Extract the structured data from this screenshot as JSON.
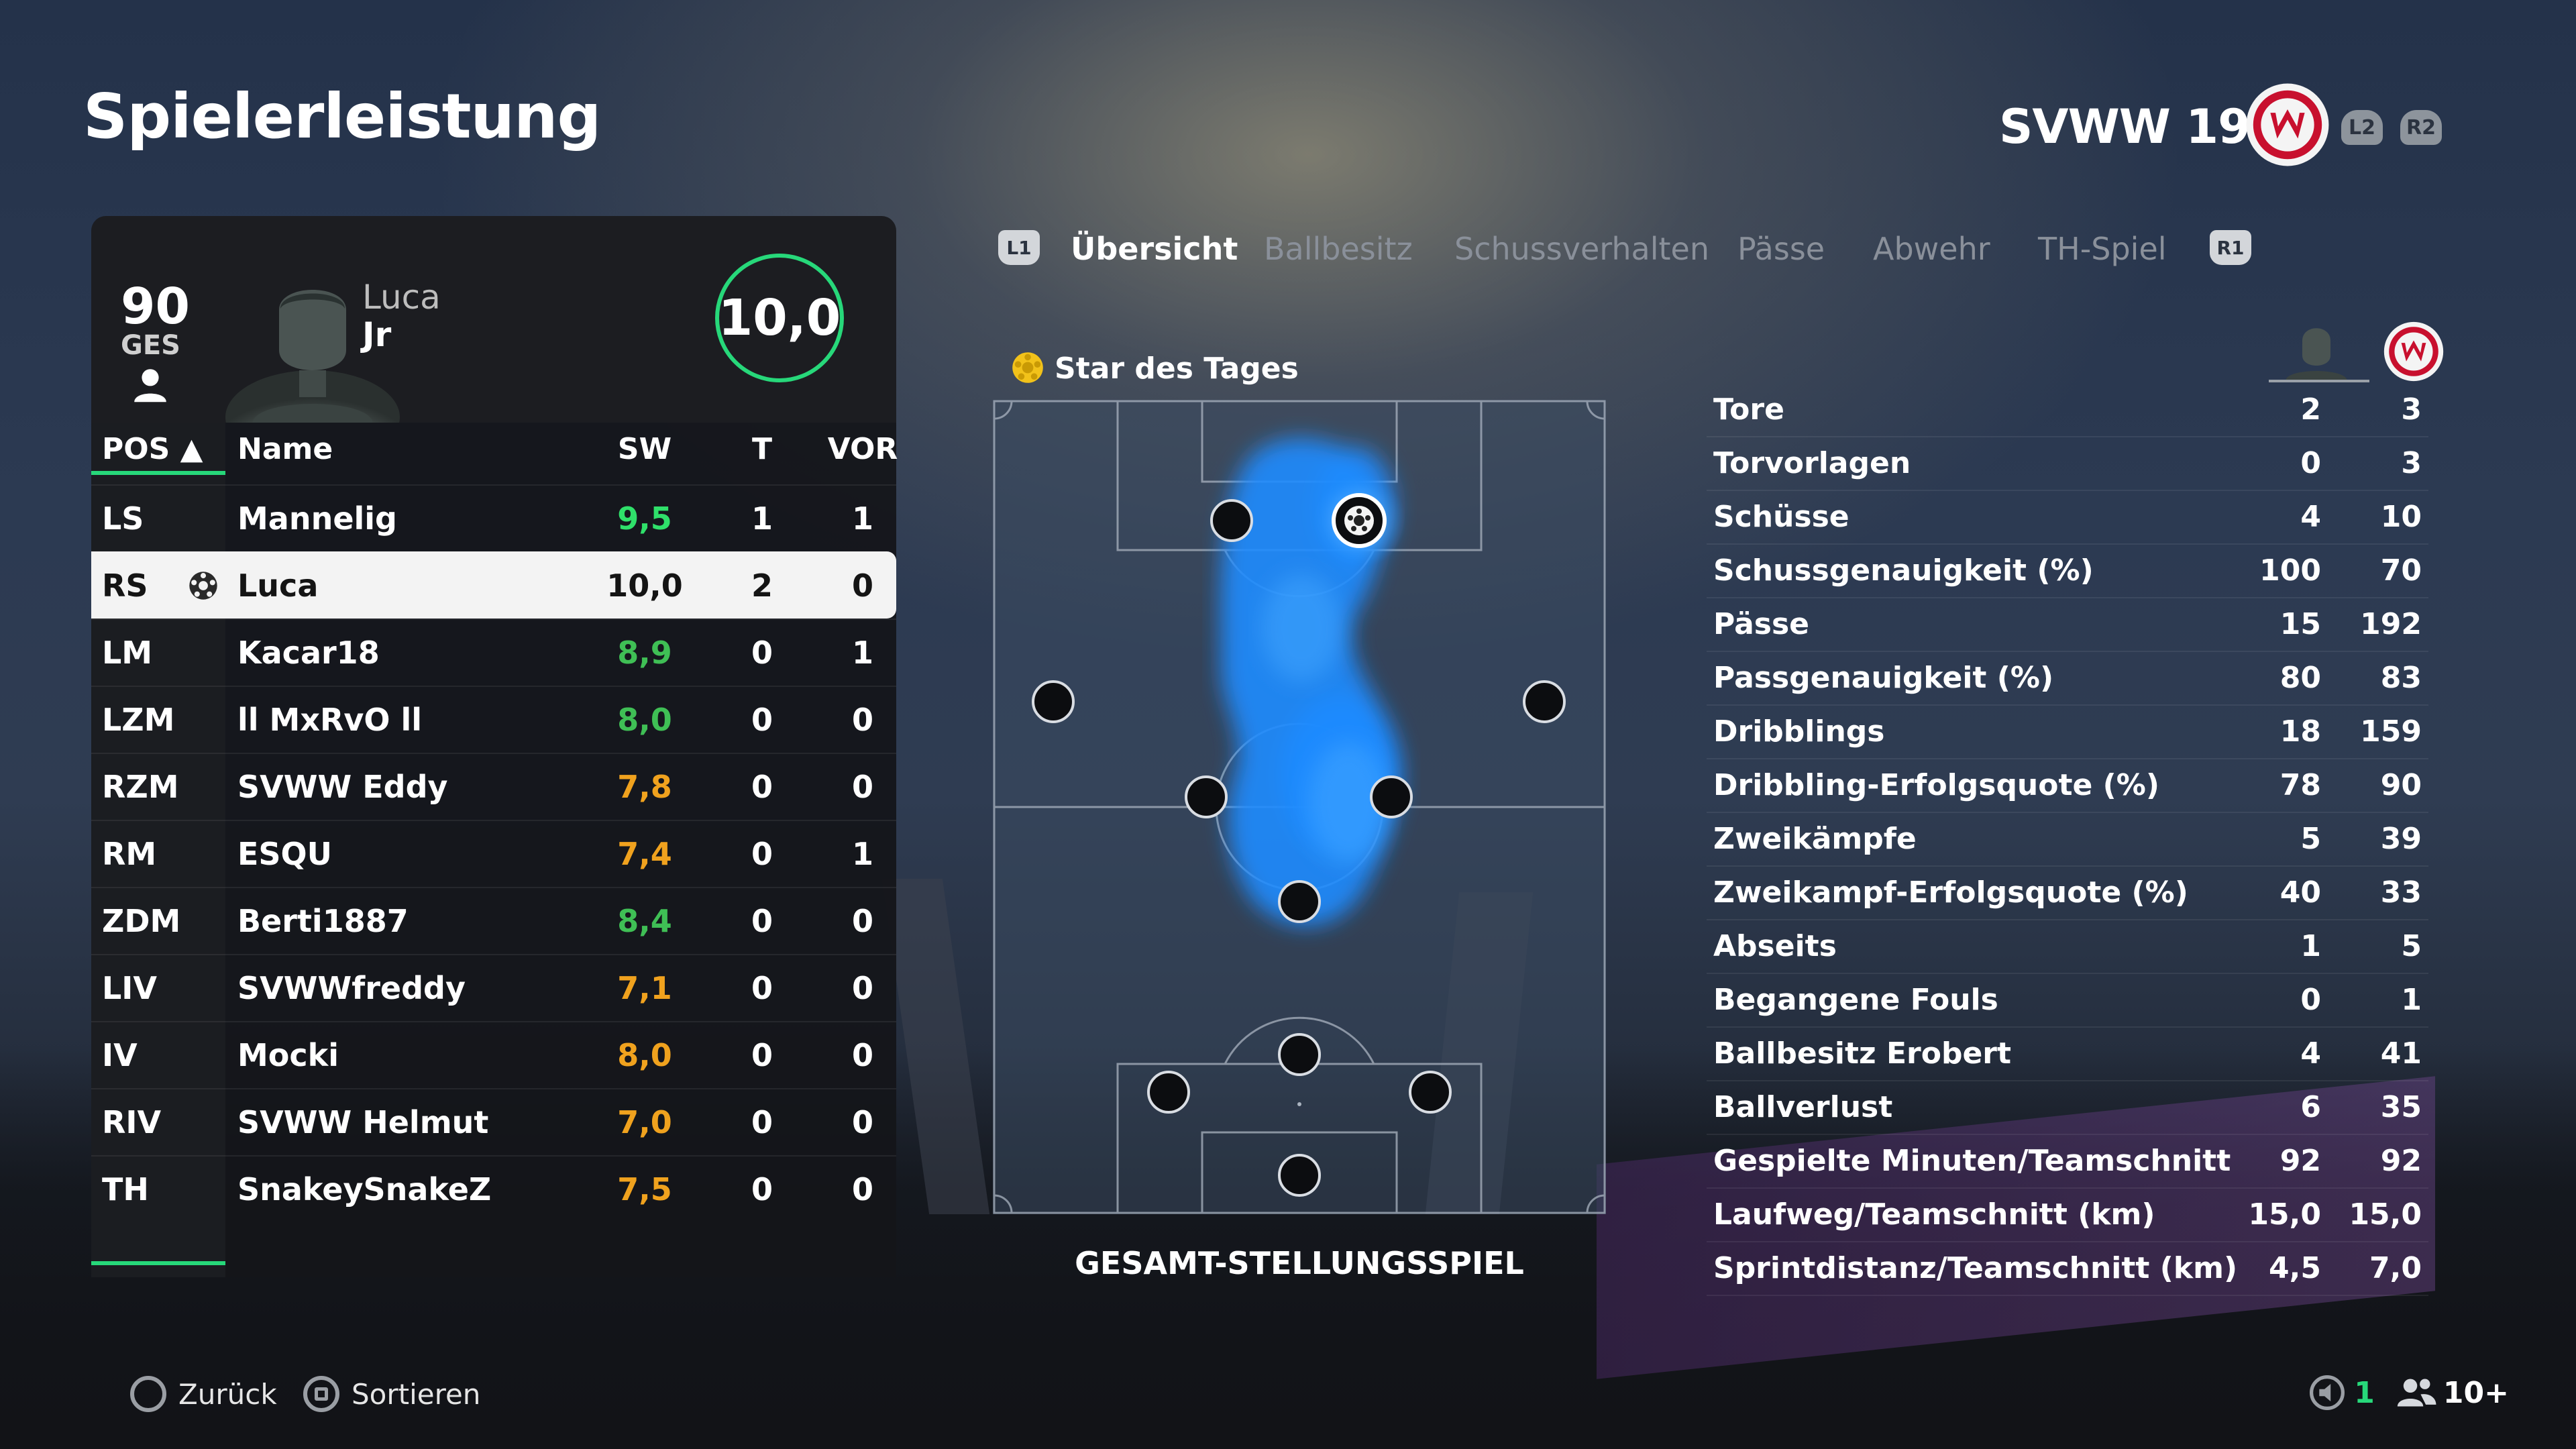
{
  "header": {
    "title": "Spielerleistung",
    "team_name": "SVWW 1926",
    "team_crest_text": "SV W 26",
    "l2": "L2",
    "r2": "R2"
  },
  "player_card": {
    "overall": "90",
    "overall_label": "GES",
    "first_name": "Luca",
    "last_name": "Jr",
    "rating": "10,0"
  },
  "table": {
    "headers": {
      "pos": "POS ▲",
      "name": "Name",
      "sw": "SW",
      "t": "T",
      "vor": "VOR"
    },
    "rows": [
      {
        "pos": "LS",
        "name": "Mannelig",
        "sw": "9,5",
        "t": "1",
        "vor": "1",
        "sw_color": "#2fe06a"
      },
      {
        "pos": "RS",
        "name": "Luca",
        "sw": "10,0",
        "t": "2",
        "vor": "0",
        "sw_color": "#141414",
        "selected": true
      },
      {
        "pos": "LM",
        "name": "Kacar18",
        "sw": "8,9",
        "t": "0",
        "vor": "1",
        "sw_color": "#3fbf55"
      },
      {
        "pos": "LZM",
        "name": "ll MxRvO ll",
        "sw": "8,0",
        "t": "0",
        "vor": "0",
        "sw_color": "#3fbf55"
      },
      {
        "pos": "RZM",
        "name": "SVWW Eddy",
        "sw": "7,8",
        "t": "0",
        "vor": "0",
        "sw_color": "#f0a21e"
      },
      {
        "pos": "RM",
        "name": "ESQU",
        "sw": "7,4",
        "t": "0",
        "vor": "1",
        "sw_color": "#f0a21e"
      },
      {
        "pos": "ZDM",
        "name": "Berti1887",
        "sw": "8,4",
        "t": "0",
        "vor": "0",
        "sw_color": "#3fbf55"
      },
      {
        "pos": "LIV",
        "name": "SVWWfreddy",
        "sw": "7,1",
        "t": "0",
        "vor": "0",
        "sw_color": "#f0a21e"
      },
      {
        "pos": "IV",
        "name": "Mocki",
        "sw": "8,0",
        "t": "0",
        "vor": "0",
        "sw_color": "#f0a21e"
      },
      {
        "pos": "RIV",
        "name": "SVWW Helmut",
        "sw": "7,0",
        "t": "0",
        "vor": "0",
        "sw_color": "#f0a21e"
      },
      {
        "pos": "TH",
        "name": "SnakeySnakeZ",
        "sw": "7,5",
        "t": "0",
        "vor": "0",
        "sw_color": "#f0a21e"
      }
    ]
  },
  "tabs": {
    "l1": "L1",
    "r1": "R1",
    "items": [
      "Übersicht",
      "Ballbesitz",
      "Schussverhalten",
      "Pässe",
      "Abwehr",
      "TH-Spiel"
    ],
    "active_index": 0
  },
  "pitch": {
    "star_label": "Star des Tages",
    "caption": "GESAMT-STELLUNGSSPIEL"
  },
  "stats": [
    {
      "label": "Tore",
      "player": "2",
      "team": "3"
    },
    {
      "label": "Torvorlagen",
      "player": "0",
      "team": "3"
    },
    {
      "label": "Schüsse",
      "player": "4",
      "team": "10"
    },
    {
      "label": "Schussgenauigkeit (%)",
      "player": "100",
      "team": "70"
    },
    {
      "label": "Pässe",
      "player": "15",
      "team": "192"
    },
    {
      "label": "Passgenauigkeit (%)",
      "player": "80",
      "team": "83"
    },
    {
      "label": "Dribblings",
      "player": "18",
      "team": "159"
    },
    {
      "label": "Dribbling-Erfolgsquote (%)",
      "player": "78",
      "team": "90"
    },
    {
      "label": "Zweikämpfe",
      "player": "5",
      "team": "39"
    },
    {
      "label": "Zweikampf-Erfolgsquote (%)",
      "player": "40",
      "team": "33"
    },
    {
      "label": "Abseits",
      "player": "1",
      "team": "5"
    },
    {
      "label": "Begangene Fouls",
      "player": "0",
      "team": "1"
    },
    {
      "label": "Ballbesitz Erobert",
      "player": "4",
      "team": "41"
    },
    {
      "label": "Ballverlust",
      "player": "6",
      "team": "35"
    },
    {
      "label": "Gespielte Minuten/Teamschnitt",
      "player": "92",
      "team": "92"
    },
    {
      "label": "Laufweg/Teamschnitt (km)",
      "player": "15,0",
      "team": "15,0"
    },
    {
      "label": "Sprintdistanz/Teamschnitt (km)",
      "player": "4,5",
      "team": "7,0"
    }
  ],
  "footer": {
    "back": "Zurück",
    "sort": "Sortieren",
    "count_a": "1",
    "count_b": "10+"
  },
  "colors": {
    "accent": "#27d87a",
    "crest_red": "#c8102e",
    "heat_blue": "#1e90ff"
  }
}
